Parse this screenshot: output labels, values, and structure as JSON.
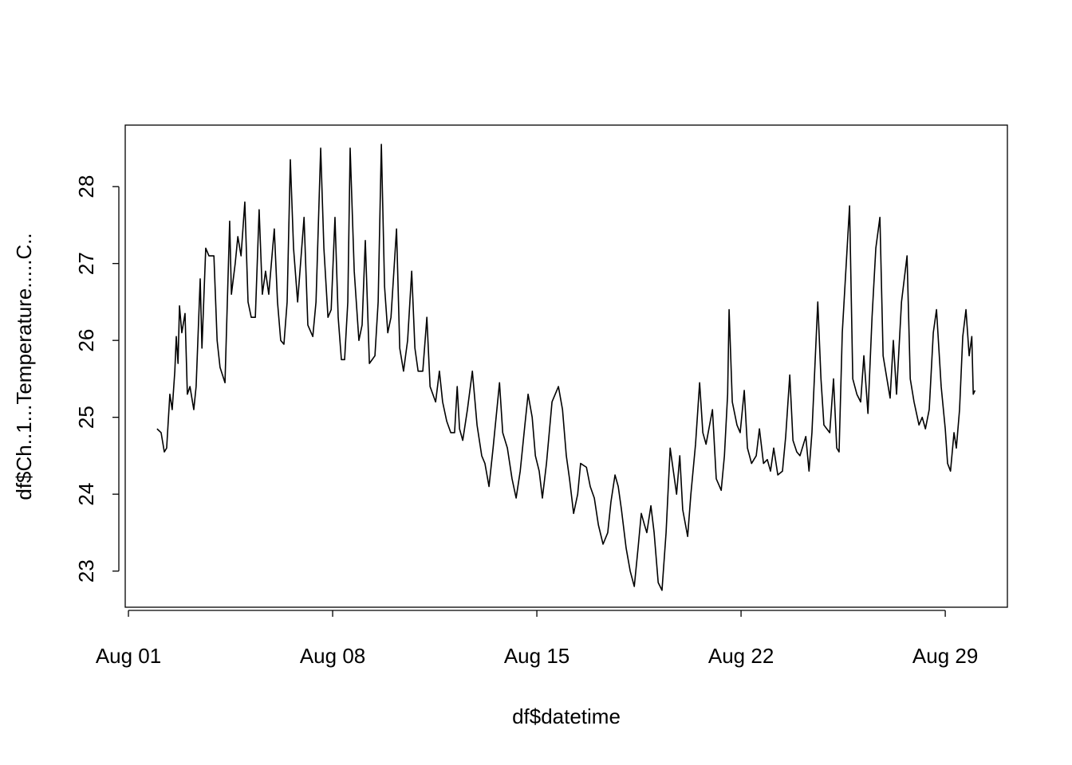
{
  "chart_data": {
    "type": "line",
    "xlabel": "df$datetime",
    "ylabel": "df$Ch..1...Temperature.....C..",
    "color": "#000000",
    "xlim": [
      0.89,
      31.13
    ],
    "ylim": [
      22.53,
      28.8
    ],
    "xticks": [
      {
        "value": 1,
        "label": "Aug 01"
      },
      {
        "value": 8,
        "label": "Aug 08"
      },
      {
        "value": 15,
        "label": "Aug 15"
      },
      {
        "value": 22,
        "label": "Aug 22"
      },
      {
        "value": 29,
        "label": "Aug 29"
      }
    ],
    "yticks": [
      23,
      24,
      25,
      26,
      27,
      28
    ],
    "x": [
      1.98,
      2.12,
      2.23,
      2.31,
      2.42,
      2.5,
      2.59,
      2.64,
      2.7,
      2.75,
      2.83,
      2.94,
      3.02,
      3.11,
      3.24,
      3.32,
      3.46,
      3.52,
      3.65,
      3.76,
      3.93,
      4.04,
      4.14,
      4.31,
      4.47,
      4.53,
      4.66,
      4.75,
      4.86,
      4.99,
      5.1,
      5.21,
      5.35,
      5.48,
      5.59,
      5.7,
      5.81,
      6.0,
      6.11,
      6.22,
      6.33,
      6.44,
      6.55,
      6.66,
      6.8,
      7.02,
      7.15,
      7.32,
      7.43,
      7.59,
      7.7,
      7.84,
      7.95,
      8.08,
      8.19,
      8.3,
      8.41,
      8.52,
      8.6,
      8.74,
      8.9,
      9.01,
      9.12,
      9.26,
      9.45,
      9.56,
      9.67,
      9.78,
      9.89,
      10.0,
      10.19,
      10.3,
      10.43,
      10.57,
      10.71,
      10.82,
      10.93,
      11.09,
      11.23,
      11.34,
      11.53,
      11.66,
      11.77,
      11.91,
      12.05,
      12.18,
      12.27,
      12.35,
      12.46,
      12.62,
      12.79,
      12.95,
      13.11,
      13.22,
      13.36,
      13.5,
      13.72,
      13.83,
      13.99,
      14.15,
      14.29,
      14.43,
      14.59,
      14.7,
      14.84,
      14.95,
      15.08,
      15.19,
      15.33,
      15.52,
      15.74,
      15.88,
      16.01,
      16.12,
      16.26,
      16.4,
      16.5,
      16.7,
      16.83,
      16.97,
      17.11,
      17.27,
      17.43,
      17.54,
      17.68,
      17.79,
      17.9,
      18.06,
      18.2,
      18.34,
      18.47,
      18.58,
      18.69,
      18.77,
      18.91,
      19.02,
      19.16,
      19.29,
      19.43,
      19.57,
      19.68,
      19.79,
      19.9,
      20.0,
      20.17,
      20.28,
      20.44,
      20.58,
      20.69,
      20.8,
      21.02,
      21.15,
      21.32,
      21.43,
      21.54,
      21.59,
      21.7,
      21.86,
      21.97,
      22.11,
      22.22,
      22.36,
      22.52,
      22.63,
      22.77,
      22.9,
      23.01,
      23.12,
      23.26,
      23.42,
      23.53,
      23.67,
      23.78,
      23.91,
      24.02,
      24.22,
      24.33,
      24.43,
      24.63,
      24.74,
      24.84,
      25.04,
      25.17,
      25.28,
      25.36,
      25.47,
      25.72,
      25.83,
      25.97,
      26.1,
      26.21,
      26.35,
      26.49,
      26.62,
      26.76,
      26.87,
      27.0,
      27.11,
      27.22,
      27.33,
      27.5,
      27.69,
      27.8,
      27.93,
      28.1,
      28.21,
      28.32,
      28.45,
      28.59,
      28.7,
      28.86,
      29.0,
      29.08,
      29.18,
      29.3,
      29.38,
      29.49,
      29.6,
      29.71,
      29.82,
      29.91,
      29.96,
      30.02
    ],
    "values": [
      24.85,
      24.8,
      24.55,
      24.6,
      25.3,
      25.1,
      25.6,
      26.05,
      25.7,
      26.45,
      26.1,
      26.35,
      25.3,
      25.4,
      25.1,
      25.4,
      26.8,
      25.9,
      27.2,
      27.1,
      27.1,
      26.0,
      25.65,
      25.45,
      27.55,
      26.6,
      27.0,
      27.35,
      27.1,
      27.8,
      26.5,
      26.3,
      26.3,
      27.7,
      26.6,
      26.9,
      26.6,
      27.45,
      26.5,
      26.0,
      25.95,
      26.5,
      28.35,
      27.2,
      26.5,
      27.6,
      26.2,
      26.05,
      26.5,
      28.5,
      27.2,
      26.3,
      26.4,
      27.6,
      26.3,
      25.75,
      25.75,
      26.5,
      28.5,
      26.9,
      26.0,
      26.2,
      27.3,
      25.7,
      25.8,
      26.5,
      28.55,
      26.7,
      26.1,
      26.3,
      27.45,
      25.9,
      25.6,
      26.0,
      26.9,
      25.9,
      25.6,
      25.6,
      26.3,
      25.4,
      25.2,
      25.6,
      25.2,
      24.95,
      24.8,
      24.8,
      25.4,
      24.85,
      24.7,
      25.1,
      25.6,
      24.9,
      24.5,
      24.4,
      24.1,
      24.6,
      25.45,
      24.8,
      24.6,
      24.2,
      23.95,
      24.3,
      24.9,
      25.3,
      25.0,
      24.5,
      24.3,
      23.95,
      24.4,
      25.2,
      25.4,
      25.1,
      24.5,
      24.2,
      23.75,
      24.0,
      24.4,
      24.35,
      24.1,
      23.95,
      23.6,
      23.35,
      23.5,
      23.9,
      24.25,
      24.1,
      23.8,
      23.3,
      23.0,
      22.8,
      23.3,
      23.75,
      23.6,
      23.5,
      23.85,
      23.5,
      22.85,
      22.75,
      23.5,
      24.6,
      24.3,
      24.0,
      24.5,
      23.8,
      23.45,
      24.0,
      24.65,
      25.45,
      24.8,
      24.65,
      25.1,
      24.2,
      24.05,
      24.5,
      25.3,
      26.4,
      25.2,
      24.9,
      24.8,
      25.35,
      24.6,
      24.4,
      24.5,
      24.85,
      24.4,
      24.45,
      24.3,
      24.6,
      24.25,
      24.3,
      24.75,
      25.55,
      24.7,
      24.55,
      24.5,
      24.75,
      24.3,
      24.8,
      26.5,
      25.5,
      24.9,
      24.8,
      25.5,
      24.6,
      24.55,
      26.1,
      27.75,
      25.5,
      25.3,
      25.2,
      25.8,
      25.05,
      26.3,
      27.2,
      27.6,
      25.8,
      25.5,
      25.25,
      26.0,
      25.3,
      26.5,
      27.1,
      25.5,
      25.2,
      24.9,
      25.0,
      24.85,
      25.1,
      26.1,
      26.4,
      25.4,
      24.85,
      24.4,
      24.3,
      24.8,
      24.6,
      25.1,
      26.05,
      26.4,
      25.8,
      26.05,
      25.3,
      25.35
    ]
  }
}
